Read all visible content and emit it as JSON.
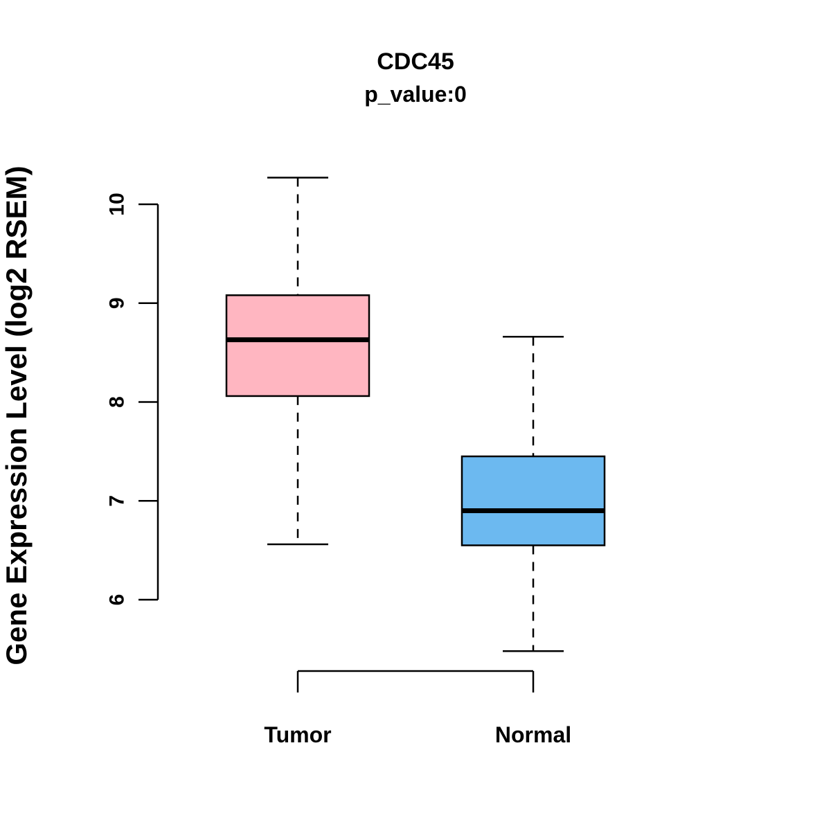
{
  "chart_data": {
    "type": "boxplot",
    "title": "CDC45",
    "subtitle": "p_value:0",
    "ylabel": "Gene Expression Level (log2 RSEM)",
    "xlabel": "",
    "ylim": [
      5.3,
      10.4
    ],
    "yticks": [
      6,
      7,
      8,
      9,
      10
    ],
    "ytick_labels": [
      "6",
      "7",
      "8",
      "9",
      "10"
    ],
    "grid": false,
    "legend": "none",
    "groups": [
      {
        "name": "Tumor",
        "color": "#FFB6C1",
        "whisker_low": 6.56,
        "q1": 8.06,
        "median": 8.63,
        "q3": 9.08,
        "whisker_high": 10.27
      },
      {
        "name": "Normal",
        "color": "#6CB9F0",
        "whisker_low": 5.48,
        "q1": 6.55,
        "median": 6.9,
        "q3": 7.45,
        "whisker_high": 8.66
      }
    ]
  }
}
